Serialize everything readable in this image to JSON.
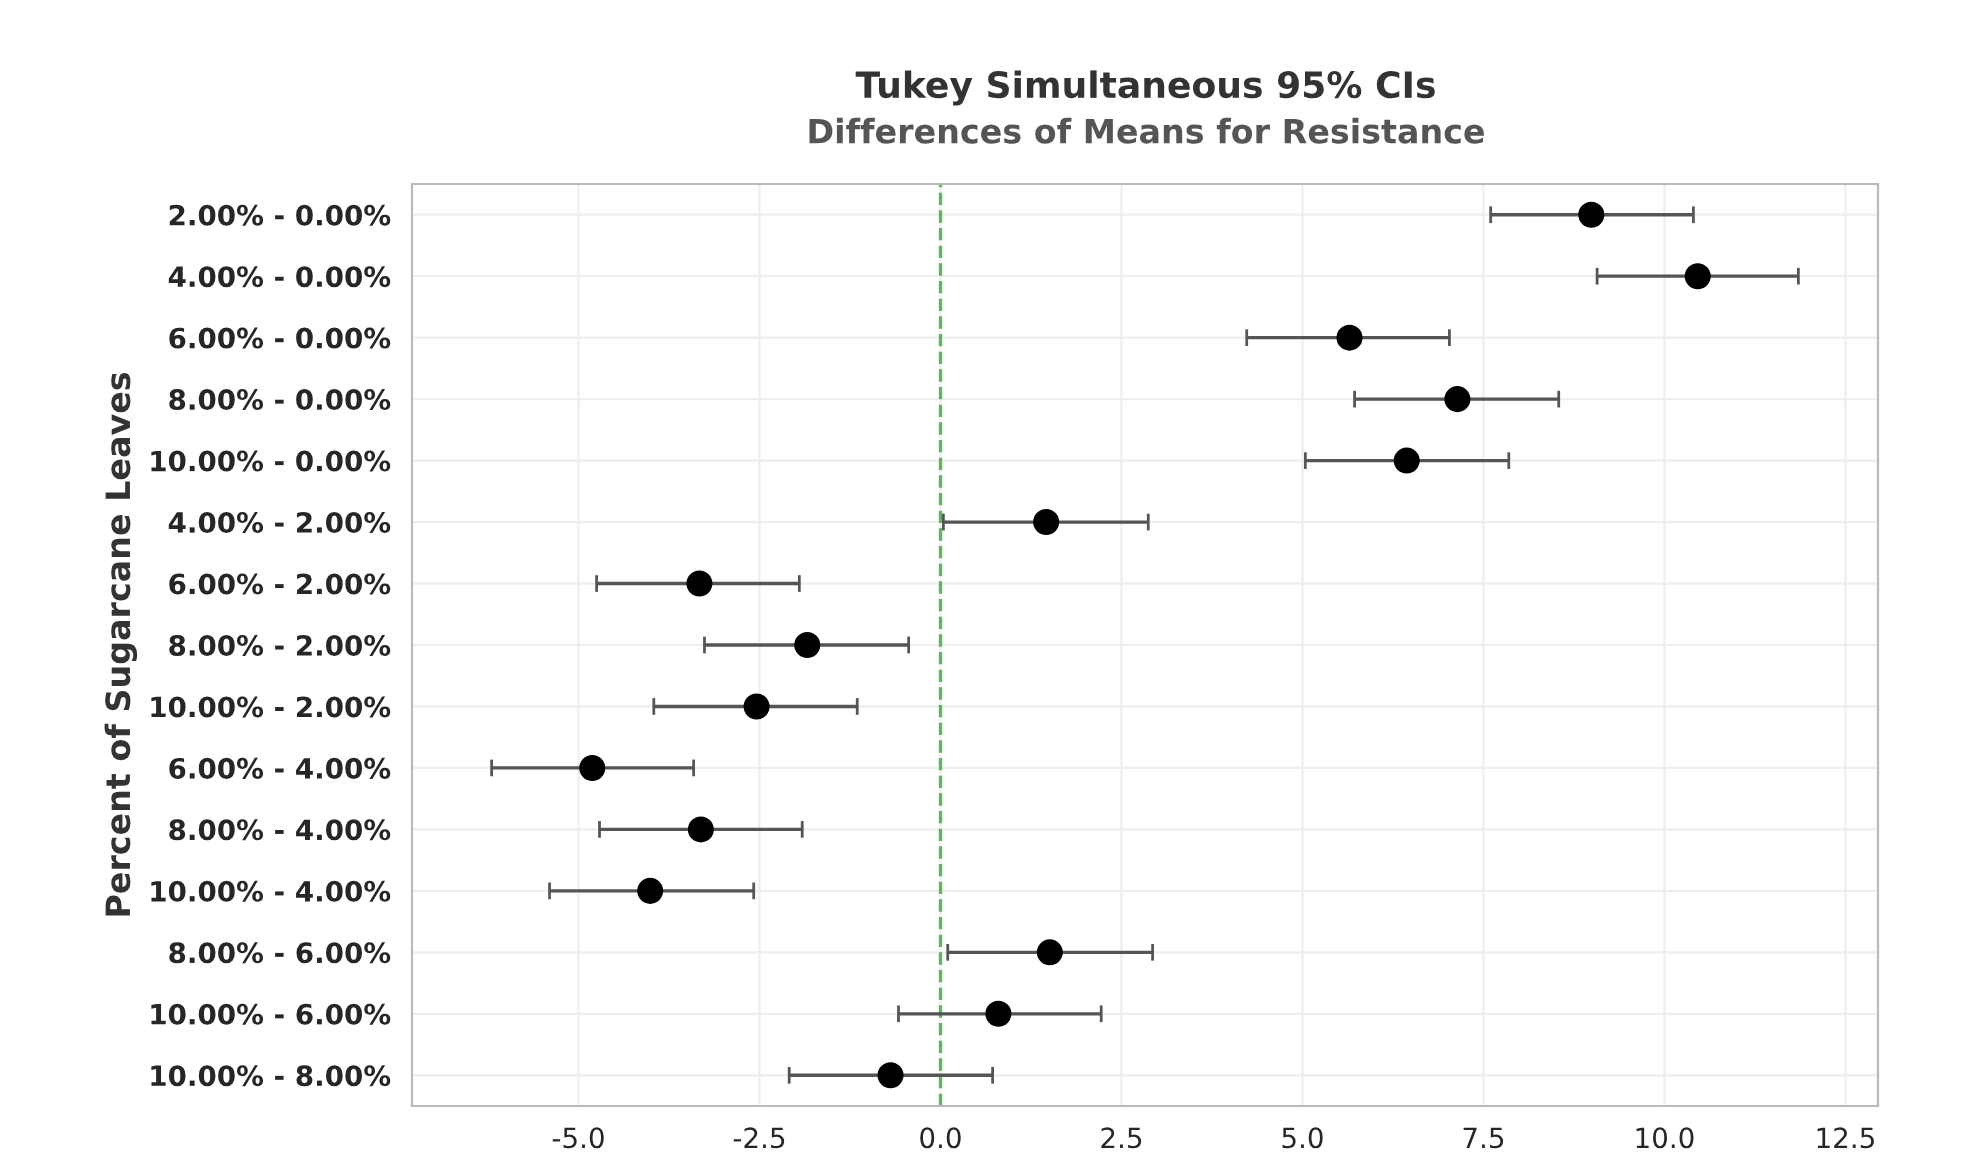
{
  "chart_data": {
    "type": "scatter",
    "title": "Tukey Simultaneous 95% CIs",
    "subtitle": "Differences of Means for Resistance",
    "ylabel": "Percent of Sugarcane Leaves",
    "orientation": "horizontal",
    "categories": [
      "2.00% - 0.00%",
      "4.00% - 0.00%",
      "6.00% - 0.00%",
      "8.00% - 0.00%",
      "10.00% - 0.00%",
      "4.00% - 2.00%",
      "6.00% - 2.00%",
      "8.00% - 2.00%",
      "10.00% - 2.00%",
      "6.00% - 4.00%",
      "8.00% - 4.00%",
      "10.00% - 4.00%",
      "8.00% - 6.00%",
      "10.00% - 6.00%",
      "10.00% - 8.00%"
    ],
    "series": [
      {
        "color": "#000000",
        "values": [
          8.99,
          10.46,
          5.65,
          7.14,
          6.44,
          1.46,
          -3.33,
          -1.84,
          -2.54,
          -4.81,
          -3.31,
          -4.01,
          1.51,
          0.8,
          -0.69
        ],
        "errors": [
          [
            7.6,
            10.4
          ],
          [
            9.07,
            11.85
          ],
          [
            4.23,
            7.03
          ],
          [
            5.72,
            8.54
          ],
          [
            5.04,
            7.85
          ],
          [
            0.04,
            2.87
          ],
          [
            -4.75,
            -1.95
          ],
          [
            -3.26,
            -0.44
          ],
          [
            -3.96,
            -1.15
          ],
          [
            -6.2,
            -3.41
          ],
          [
            -4.71,
            -1.91
          ],
          [
            -5.4,
            -2.58
          ],
          [
            0.1,
            2.93
          ],
          [
            -0.58,
            2.22
          ],
          [
            -2.09,
            0.72
          ]
        ]
      }
    ],
    "xlim": [
      -7.3,
      12.95
    ],
    "xticks": [
      {
        "value": -5,
        "label": "-5.0"
      },
      {
        "value": -2.5,
        "label": "-2.5"
      },
      {
        "value": 0,
        "label": "0.0"
      },
      {
        "value": 2.5,
        "label": "2.5"
      },
      {
        "value": 5,
        "label": "5.0"
      },
      {
        "value": 7.5,
        "label": "7.5"
      },
      {
        "value": 10,
        "label": "10.0"
      },
      {
        "value": 12.5,
        "label": "12.5"
      }
    ],
    "ref_lines": [
      {
        "axis": "x",
        "value": 0,
        "color": "#5cb85c",
        "line_style": "dashed"
      }
    ],
    "grid": true,
    "marker": "circle"
  }
}
